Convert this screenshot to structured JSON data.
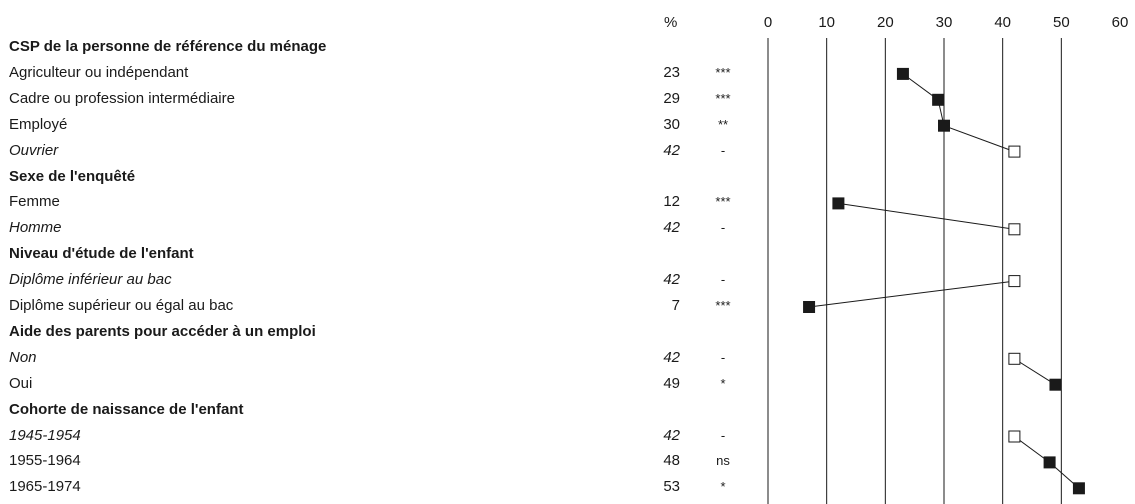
{
  "header": {
    "pct_label": "%"
  },
  "rows": [
    {
      "type": "header",
      "label": "CSP de la personne de référence du ménage"
    },
    {
      "type": "item",
      "label": "Agriculteur ou indépendant",
      "value": 23,
      "value_text": "23",
      "sig": "***",
      "reference": false
    },
    {
      "type": "item",
      "label": "Cadre ou profession intermédiaire",
      "value": 29,
      "value_text": "29",
      "sig": "***",
      "reference": false
    },
    {
      "type": "item",
      "label": "Employé",
      "value": 30,
      "value_text": "30",
      "sig": "**",
      "reference": false
    },
    {
      "type": "item",
      "label": "Ouvrier",
      "value": 42,
      "value_text": "42",
      "sig": "-",
      "reference": true
    },
    {
      "type": "header",
      "label": "Sexe de l'enquêté"
    },
    {
      "type": "item",
      "label": "Femme",
      "value": 12,
      "value_text": "12",
      "sig": "***",
      "reference": false
    },
    {
      "type": "item",
      "label": "Homme",
      "value": 42,
      "value_text": "42",
      "sig": "-",
      "reference": true
    },
    {
      "type": "header",
      "label": "Niveau d'étude de l'enfant"
    },
    {
      "type": "item",
      "label": "Diplôme inférieur au bac",
      "value": 42,
      "value_text": "42",
      "sig": "-",
      "reference": true
    },
    {
      "type": "item",
      "label": "Diplôme supérieur ou égal au bac",
      "value": 7,
      "value_text": "7",
      "sig": "***",
      "reference": false
    },
    {
      "type": "header",
      "label": "Aide des parents pour accéder à un emploi"
    },
    {
      "type": "item",
      "label": "Non",
      "value": 42,
      "value_text": "42",
      "sig": "-",
      "reference": true
    },
    {
      "type": "item",
      "label": "Oui",
      "value": 49,
      "value_text": "49",
      "sig": "*",
      "reference": false
    },
    {
      "type": "header",
      "label": "Cohorte de naissance de l'enfant"
    },
    {
      "type": "item",
      "label": "1945-1954",
      "value": 42,
      "value_text": "42",
      "sig": "-",
      "reference": true
    },
    {
      "type": "item",
      "label": "1955-1964",
      "value": 48,
      "value_text": "48",
      "sig": "ns",
      "reference": false
    },
    {
      "type": "item",
      "label": "1965-1974",
      "value": 53,
      "value_text": "53",
      "sig": "*",
      "reference": false
    }
  ],
  "chart_data": {
    "type": "scatter",
    "title": "",
    "xlabel": "",
    "ylabel": "",
    "xlim": [
      0,
      60
    ],
    "xticks": [
      "0",
      "10",
      "20",
      "30",
      "40",
      "50",
      "60"
    ],
    "grid": true,
    "groups": [
      {
        "name": "CSP de la personne de référence du ménage",
        "categories": [
          "Agriculteur ou indépendant",
          "Cadre ou profession intermédiaire",
          "Employé",
          "Ouvrier"
        ],
        "values": [
          23,
          29,
          30,
          42
        ],
        "reference": "Ouvrier"
      },
      {
        "name": "Sexe de l'enquêté",
        "categories": [
          "Femme",
          "Homme"
        ],
        "values": [
          12,
          42
        ],
        "reference": "Homme"
      },
      {
        "name": "Niveau d'étude de l'enfant",
        "categories": [
          "Diplôme inférieur au bac",
          "Diplôme supérieur ou égal au bac"
        ],
        "values": [
          42,
          7
        ],
        "reference": "Diplôme inférieur au bac"
      },
      {
        "name": "Aide des parents pour accéder à un emploi",
        "categories": [
          "Non",
          "Oui"
        ],
        "values": [
          42,
          49
        ],
        "reference": "Non"
      },
      {
        "name": "Cohorte de naissance de l'enfant",
        "categories": [
          "1945-1954",
          "1955-1964",
          "1965-1974"
        ],
        "values": [
          42,
          48,
          53
        ],
        "reference": "1945-1954"
      }
    ],
    "markers": {
      "reference": "open-square",
      "other": "filled-square"
    },
    "colors": {
      "ink": "#1a1a1a",
      "open_fill": "#ffffff"
    }
  }
}
